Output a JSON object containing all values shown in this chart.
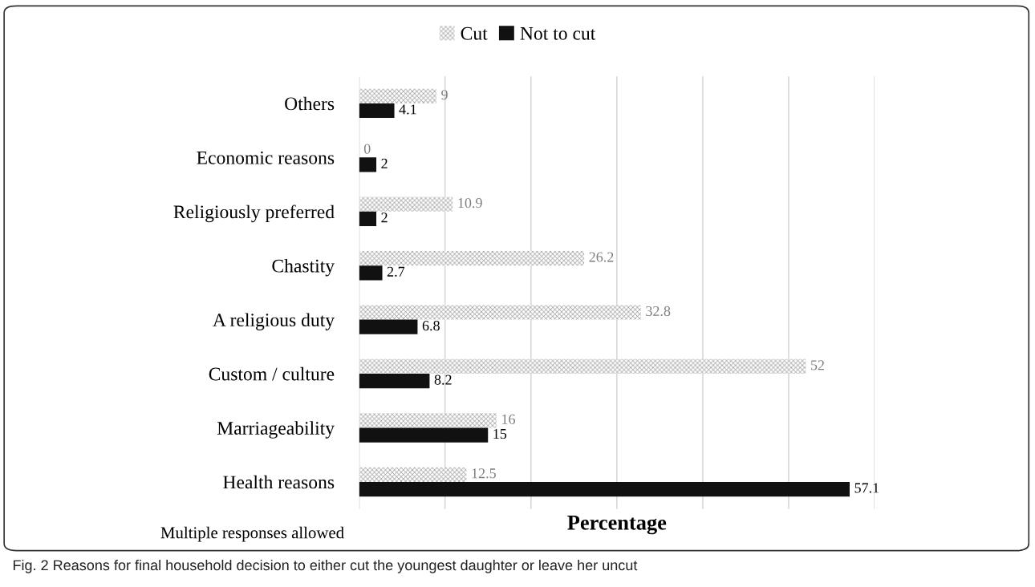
{
  "chart_data": {
    "type": "bar",
    "orientation": "horizontal",
    "xlabel": "Percentage",
    "categories": [
      "Others",
      "Economic reasons",
      "Religiously preferred",
      "Chastity",
      "A religious duty",
      "Custom / culture",
      "Marriageability",
      "Health reasons"
    ],
    "series": [
      {
        "name": "Cut",
        "color": "#8c8c8c",
        "values": [
          9,
          0,
          10.9,
          26.2,
          32.8,
          52,
          16,
          12.5
        ]
      },
      {
        "name": "Not to cut",
        "color": "#111111",
        "values": [
          4.1,
          2,
          2,
          2.7,
          6.8,
          8.2,
          15,
          57.1
        ]
      }
    ],
    "xlim": [
      0,
      60
    ],
    "xticks": [
      {
        "value": 0,
        "label": null
      },
      {
        "value": 10,
        "label": null
      },
      {
        "value": 20,
        "label": null
      },
      {
        "value": 30,
        "label": null
      },
      {
        "value": 40,
        "label": null
      },
      {
        "value": 50,
        "label": null
      },
      {
        "value": 60,
        "label": null
      }
    ],
    "grid": "x",
    "legend": "top",
    "data_labels": true,
    "annotations": [
      "Multiple responses allowed",
      "Fig. 2 Reasons for final household decision to either cut the youngest daughter or leave her uncut"
    ]
  }
}
